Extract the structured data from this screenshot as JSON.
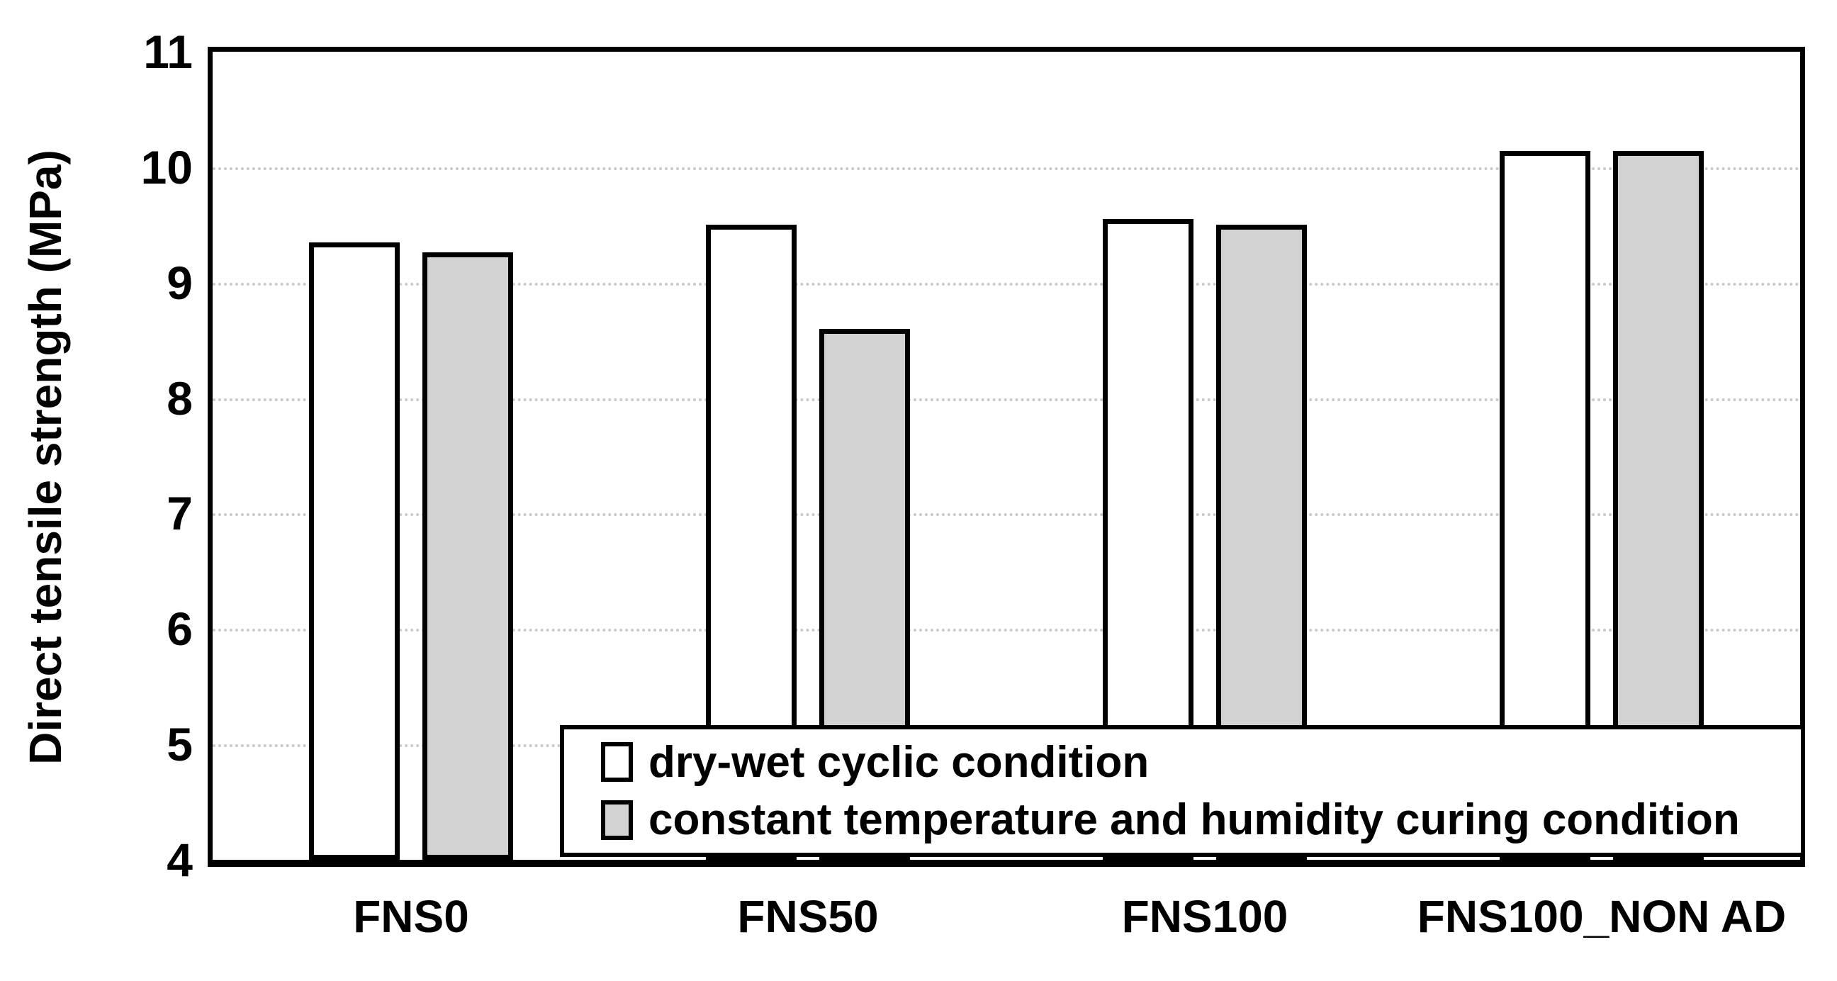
{
  "chart_data": {
    "type": "bar",
    "title": "",
    "ylabel": "Direct tensile strength (MPa)",
    "xlabel": "",
    "ylim": [
      4,
      11
    ],
    "yticks": [
      4,
      5,
      6,
      7,
      8,
      9,
      10,
      11
    ],
    "grid": "horizontal-dotted",
    "legend_position": "inside-bottom-right",
    "categories": [
      "FNS0",
      "FNS50",
      "FNS100",
      "FNS100_NON AD"
    ],
    "series": [
      {
        "name": "dry-wet cyclic condition",
        "fill": "#ffffff",
        "values": [
          9.35,
          9.5,
          9.55,
          10.14
        ]
      },
      {
        "name": "constant temperature and humidity curing condition",
        "fill": "#d2d2d2",
        "values": [
          9.26,
          8.6,
          9.5,
          10.14
        ]
      }
    ],
    "colors": {
      "bar_border": "#000000",
      "axis": "#000000",
      "grid": "#c9c9c9",
      "background": "#ffffff",
      "text": "#000000",
      "legend_bg": "#ffffff",
      "legend_border": "#000000"
    }
  }
}
